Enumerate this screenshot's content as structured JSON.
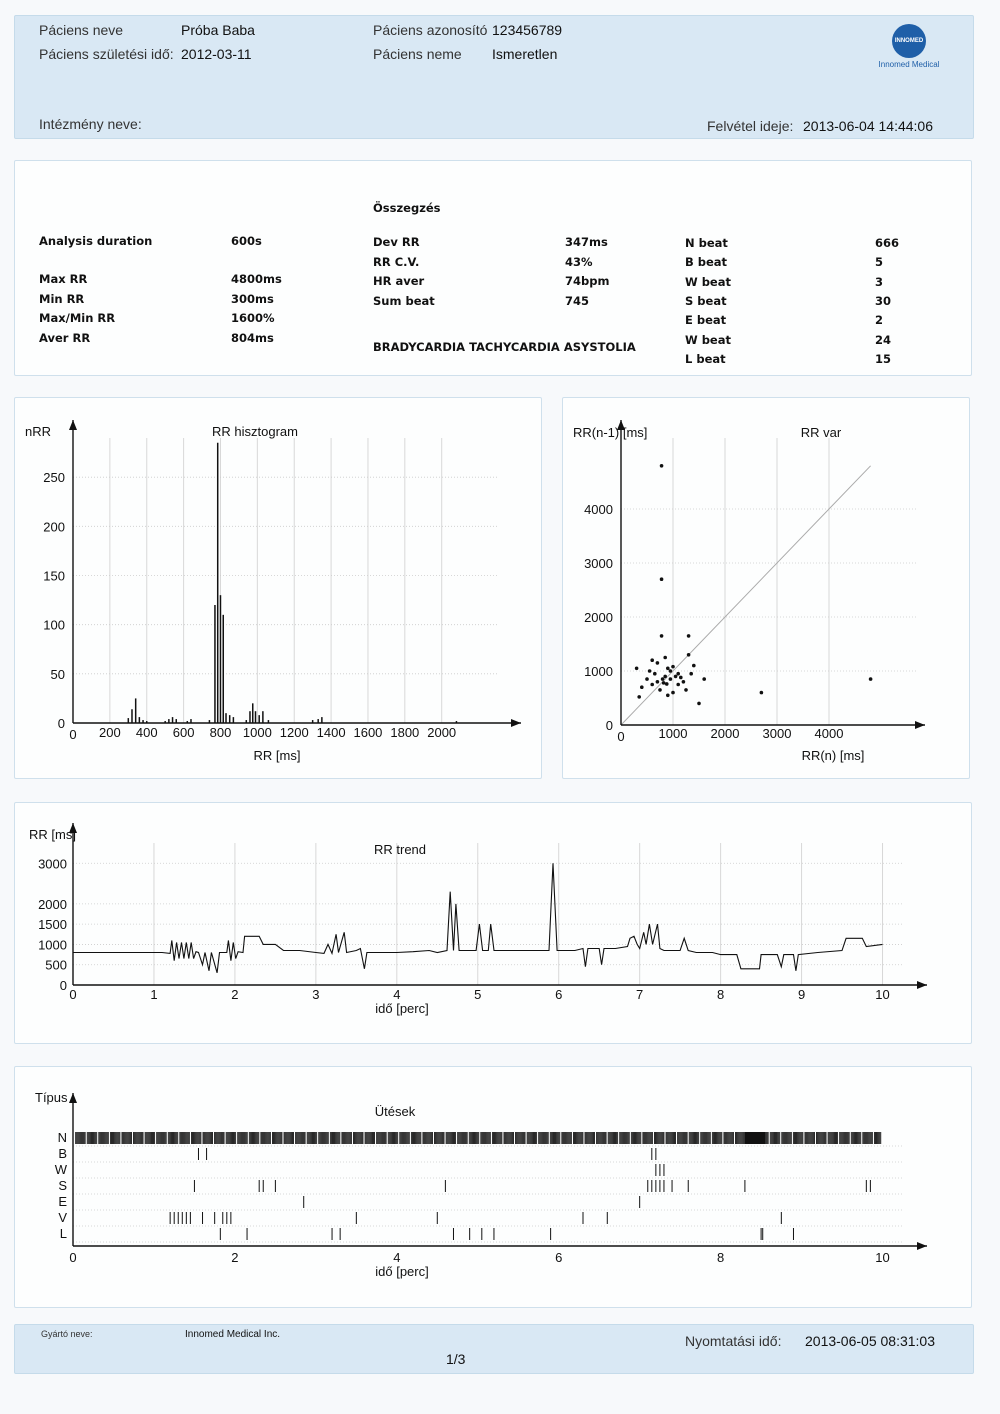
{
  "header": {
    "patient_name_label": "Páciens neve",
    "patient_name": "Próba Baba",
    "birth_label": "Páciens születési idő:",
    "birth_date": "2012-03-11",
    "id_label": "Páciens azonosító",
    "id_value": "123456789",
    "sex_label": "Páciens neme",
    "sex_value": "Ismeretlen",
    "institution_label": "Intézmény neve:",
    "recording_label": "Felvétel ideje:",
    "recording_time": "2013-06-04 14:44:06",
    "logo_text": "INNOMED",
    "logo_caption": "Innomed Medical"
  },
  "summary": {
    "title": "Összegzés",
    "left": [
      {
        "label": "Analysis duration",
        "value": "600s"
      },
      {
        "label": "Max RR",
        "value": "4800ms"
      },
      {
        "label": "Min RR",
        "value": "300ms"
      },
      {
        "label": "Max/Min RR",
        "value": "1600%"
      },
      {
        "label": "Aver RR",
        "value": "804ms"
      }
    ],
    "middle": [
      {
        "label": "Dev RR",
        "value": "347ms"
      },
      {
        "label": "RR C.V.",
        "value": "43%"
      },
      {
        "label": "HR aver",
        "value": "74bpm"
      },
      {
        "label": "Sum beat",
        "value": "745"
      }
    ],
    "diagnosis": "BRADYCARDIA TACHYCARDIA ASYSTOLIA",
    "right": [
      {
        "label": "N beat",
        "value": "666"
      },
      {
        "label": "B beat",
        "value": "5"
      },
      {
        "label": "W beat",
        "value": "3"
      },
      {
        "label": "S beat",
        "value": "30"
      },
      {
        "label": "E beat",
        "value": "2"
      },
      {
        "label": "W beat",
        "value": "24"
      },
      {
        "label": "L beat",
        "value": "15"
      }
    ]
  },
  "footer": {
    "maker_label": "Gyártó neve:",
    "maker": "Innomed Medical Inc.",
    "print_label": "Nyomtatási idő:",
    "print_time": "2013-06-05 08:31:03",
    "page": "1/3"
  },
  "chart_data": [
    {
      "type": "bar",
      "title": "RR hisztogram",
      "xlabel": "RR [ms]",
      "ylabel": "nRR",
      "xlim": [
        0,
        2300
      ],
      "ylim": [
        0,
        300
      ],
      "xticks": [
        0,
        200,
        400,
        600,
        800,
        1000,
        1200,
        1400,
        1600,
        1800,
        2000
      ],
      "yticks": [
        0,
        50,
        100,
        150,
        200,
        250
      ],
      "grid": true,
      "bins": [
        [
          300,
          5
        ],
        [
          320,
          14
        ],
        [
          340,
          25
        ],
        [
          360,
          6
        ],
        [
          380,
          3
        ],
        [
          400,
          2
        ],
        [
          500,
          2
        ],
        [
          520,
          4
        ],
        [
          540,
          6
        ],
        [
          560,
          4
        ],
        [
          620,
          2
        ],
        [
          640,
          4
        ],
        [
          740,
          3
        ],
        [
          770,
          120
        ],
        [
          785,
          285
        ],
        [
          800,
          130
        ],
        [
          815,
          110
        ],
        [
          830,
          10
        ],
        [
          850,
          8
        ],
        [
          870,
          6
        ],
        [
          940,
          3
        ],
        [
          960,
          12
        ],
        [
          975,
          20
        ],
        [
          990,
          12
        ],
        [
          1010,
          8
        ],
        [
          1030,
          12
        ],
        [
          1060,
          3
        ],
        [
          1300,
          3
        ],
        [
          1330,
          4
        ],
        [
          1350,
          6
        ],
        [
          2080,
          2
        ]
      ]
    },
    {
      "type": "scatter",
      "title": "RR var",
      "xlabel": "RR(n) [ms]",
      "ylabel": "RR(n-1) [ms]",
      "xlim": [
        0,
        5500
      ],
      "ylim": [
        0,
        5500
      ],
      "xticks": [
        0,
        1000,
        2000,
        3000,
        4000
      ],
      "yticks": [
        0,
        1000,
        2000,
        3000,
        4000
      ],
      "identity_line": true,
      "grid": true,
      "points": [
        [
          780,
          4800
        ],
        [
          780,
          2700
        ],
        [
          780,
          1650
        ],
        [
          1300,
          1650
        ],
        [
          300,
          1050
        ],
        [
          350,
          520
        ],
        [
          500,
          850
        ],
        [
          600,
          750
        ],
        [
          650,
          950
        ],
        [
          700,
          800
        ],
        [
          750,
          650
        ],
        [
          800,
          850
        ],
        [
          820,
          780
        ],
        [
          850,
          900
        ],
        [
          880,
          760
        ],
        [
          900,
          1050
        ],
        [
          950,
          850
        ],
        [
          1000,
          1080
        ],
        [
          1050,
          900
        ],
        [
          1100,
          950
        ],
        [
          1150,
          880
        ],
        [
          1200,
          800
        ],
        [
          1300,
          1300
        ],
        [
          1400,
          1100
        ],
        [
          1350,
          950
        ],
        [
          1600,
          850
        ],
        [
          1500,
          400
        ],
        [
          2700,
          600
        ],
        [
          4800,
          850
        ],
        [
          600,
          1200
        ],
        [
          700,
          1150
        ],
        [
          900,
          550
        ],
        [
          1000,
          600
        ],
        [
          400,
          700
        ],
        [
          550,
          1000
        ],
        [
          1250,
          650
        ],
        [
          1100,
          750
        ],
        [
          850,
          1250
        ],
        [
          950,
          1000
        ]
      ]
    },
    {
      "type": "line",
      "title": "RR trend",
      "xlabel": "idő [perc]",
      "ylabel": "RR [ms]",
      "xlim": [
        0,
        10.5
      ],
      "ylim": [
        0,
        3500
      ],
      "xticks": [
        0,
        1,
        2,
        3,
        4,
        5,
        6,
        7,
        8,
        9,
        10
      ],
      "yticks": [
        0,
        500,
        1000,
        1500,
        2000,
        3000
      ],
      "grid": true,
      "points": [
        [
          0,
          800
        ],
        [
          1.1,
          800
        ],
        [
          1.2,
          780
        ],
        [
          1.22,
          1100
        ],
        [
          1.25,
          600
        ],
        [
          1.28,
          1050
        ],
        [
          1.31,
          650
        ],
        [
          1.34,
          1050
        ],
        [
          1.37,
          650
        ],
        [
          1.4,
          1050
        ],
        [
          1.43,
          650
        ],
        [
          1.46,
          1050
        ],
        [
          1.49,
          650
        ],
        [
          1.52,
          820
        ],
        [
          1.55,
          800
        ],
        [
          1.6,
          500
        ],
        [
          1.63,
          800
        ],
        [
          1.68,
          350
        ],
        [
          1.71,
          800
        ],
        [
          1.78,
          300
        ],
        [
          1.81,
          800
        ],
        [
          1.9,
          800
        ],
        [
          1.92,
          1100
        ],
        [
          1.95,
          600
        ],
        [
          1.98,
          1050
        ],
        [
          2.01,
          650
        ],
        [
          2.04,
          820
        ],
        [
          2.1,
          800
        ],
        [
          2.12,
          1200
        ],
        [
          2.3,
          1200
        ],
        [
          2.35,
          1000
        ],
        [
          2.5,
          1000
        ],
        [
          2.6,
          850
        ],
        [
          2.8,
          850
        ],
        [
          3.0,
          800
        ],
        [
          3.1,
          780
        ],
        [
          3.15,
          1000
        ],
        [
          3.2,
          780
        ],
        [
          3.25,
          1250
        ],
        [
          3.28,
          800
        ],
        [
          3.35,
          1300
        ],
        [
          3.38,
          800
        ],
        [
          3.5,
          850
        ],
        [
          3.55,
          900
        ],
        [
          3.6,
          400
        ],
        [
          3.63,
          800
        ],
        [
          4.0,
          800
        ],
        [
          4.2,
          820
        ],
        [
          4.4,
          850
        ],
        [
          4.5,
          800
        ],
        [
          4.62,
          850
        ],
        [
          4.66,
          2300
        ],
        [
          4.7,
          850
        ],
        [
          4.73,
          2000
        ],
        [
          4.77,
          850
        ],
        [
          4.85,
          850
        ],
        [
          4.98,
          850
        ],
        [
          5.02,
          1500
        ],
        [
          5.06,
          850
        ],
        [
          5.13,
          850
        ],
        [
          5.16,
          1500
        ],
        [
          5.2,
          850
        ],
        [
          5.5,
          850
        ],
        [
          5.8,
          850
        ],
        [
          5.88,
          850
        ],
        [
          5.93,
          3000
        ],
        [
          5.98,
          850
        ],
        [
          6.2,
          850
        ],
        [
          6.3,
          900
        ],
        [
          6.33,
          450
        ],
        [
          6.36,
          900
        ],
        [
          6.5,
          900
        ],
        [
          6.53,
          500
        ],
        [
          6.56,
          900
        ],
        [
          6.7,
          900
        ],
        [
          6.85,
          950
        ],
        [
          6.88,
          1150
        ],
        [
          6.93,
          1200
        ],
        [
          6.97,
          1000
        ],
        [
          7.0,
          900
        ],
        [
          7.05,
          1300
        ],
        [
          7.08,
          1000
        ],
        [
          7.12,
          1500
        ],
        [
          7.16,
          1000
        ],
        [
          7.22,
          1500
        ],
        [
          7.25,
          900
        ],
        [
          7.3,
          850
        ],
        [
          7.5,
          850
        ],
        [
          7.55,
          1150
        ],
        [
          7.6,
          850
        ],
        [
          7.7,
          800
        ],
        [
          7.9,
          800
        ],
        [
          8.0,
          750
        ],
        [
          8.2,
          750
        ],
        [
          8.25,
          400
        ],
        [
          8.48,
          400
        ],
        [
          8.5,
          750
        ],
        [
          8.7,
          750
        ],
        [
          8.75,
          450
        ],
        [
          8.78,
          750
        ],
        [
          8.9,
          750
        ],
        [
          8.93,
          350
        ],
        [
          8.96,
          750
        ],
        [
          9.2,
          800
        ],
        [
          9.5,
          850
        ],
        [
          9.55,
          1150
        ],
        [
          9.75,
          1150
        ],
        [
          9.8,
          950
        ],
        [
          10.0,
          1000
        ]
      ]
    },
    {
      "type": "scatter",
      "title": "Ütések",
      "xlabel": "idő [perc]",
      "ylabel": "Típus",
      "xlim": [
        0,
        10.5
      ],
      "xticks": [
        0,
        2,
        4,
        6,
        8,
        10
      ],
      "categories": [
        "N",
        "B",
        "W",
        "S",
        "E",
        "V",
        "L"
      ],
      "grid": true,
      "events": {
        "B": [
          1.55,
          1.65,
          7.15,
          7.2
        ],
        "W": [
          7.2,
          7.25,
          7.3
        ],
        "S": [
          1.5,
          2.3,
          2.35,
          2.5,
          4.6,
          7.1,
          7.15,
          7.2,
          7.25,
          7.3,
          7.4,
          7.6,
          8.3,
          9.8,
          9.85
        ],
        "E": [
          2.85,
          7.0
        ],
        "V": [
          1.2,
          1.25,
          1.3,
          1.35,
          1.4,
          1.45,
          1.6,
          1.75,
          1.85,
          1.9,
          1.95,
          3.5,
          4.5,
          6.3,
          6.6,
          8.75
        ],
        "L": [
          1.82,
          2.15,
          3.2,
          3.3,
          4.7,
          4.9,
          5.05,
          5.2,
          5.9,
          8.5,
          8.52,
          8.9
        ]
      },
      "dense_regions": [
        [
          8.3,
          8.55
        ]
      ]
    }
  ]
}
